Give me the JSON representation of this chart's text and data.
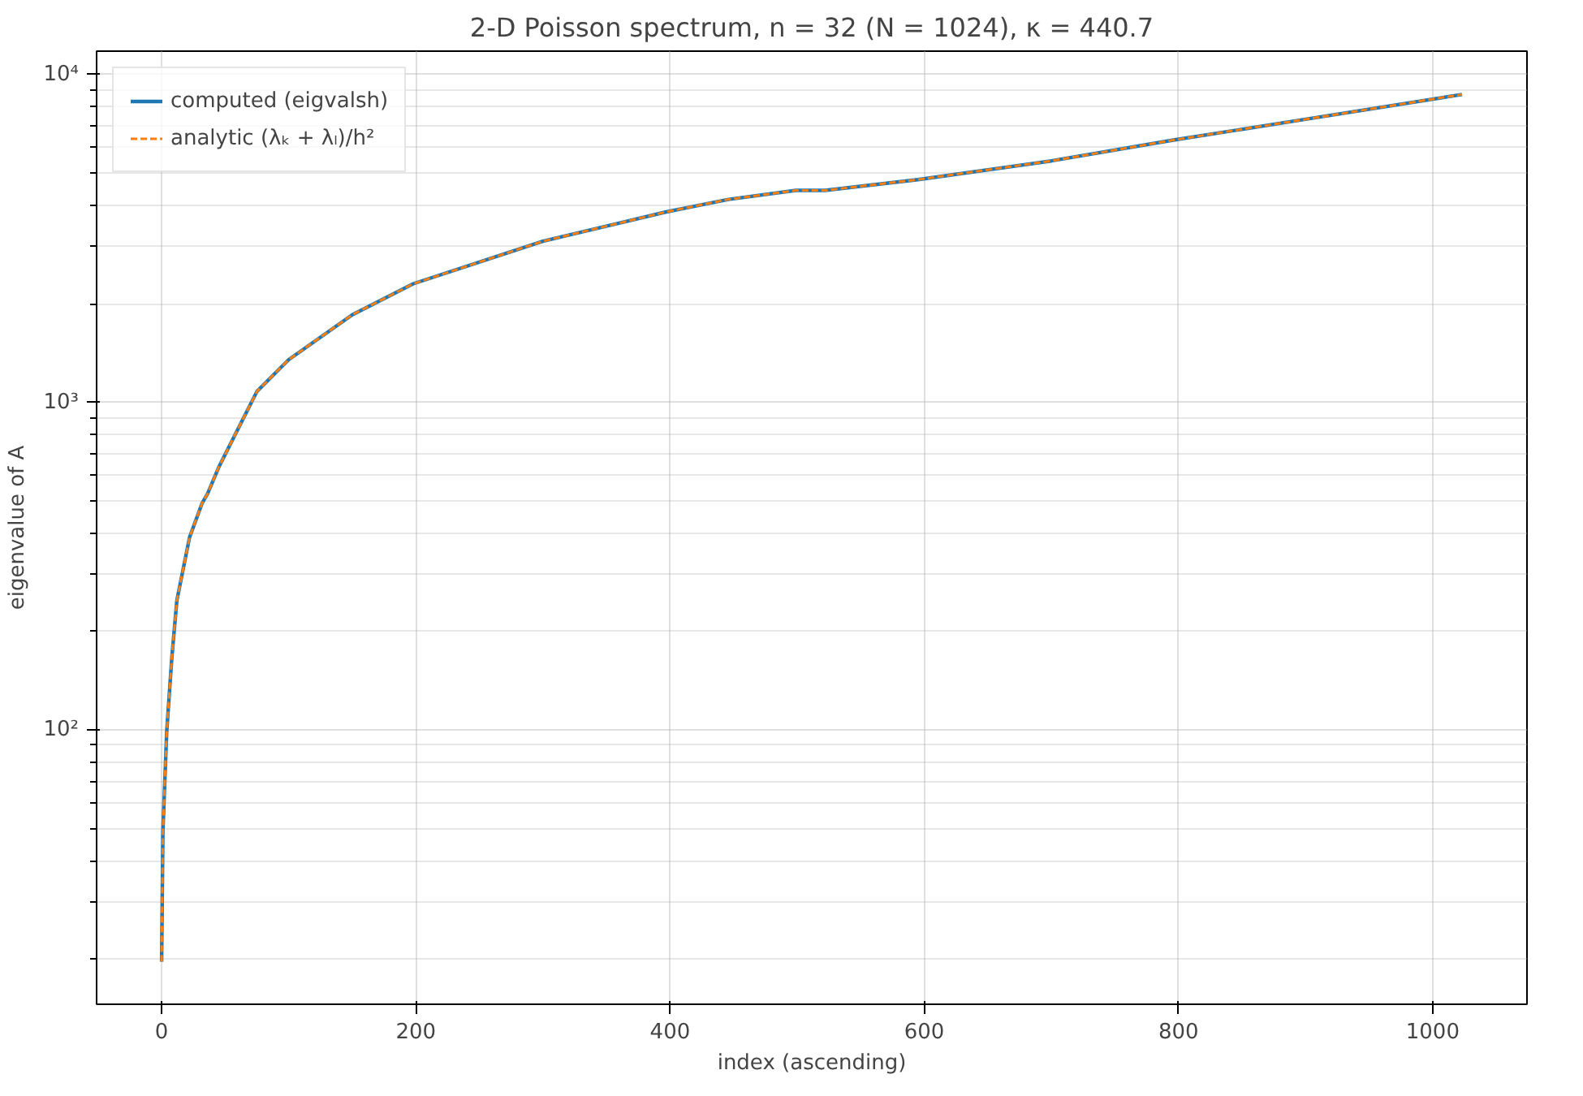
{
  "chart_data": {
    "type": "line",
    "title": "2-D Poisson spectrum, n = 32 (N = 1024), κ = 440.7",
    "xlabel": "index (ascending)",
    "ylabel": "eigenvalue of A",
    "x": [
      0,
      1,
      4,
      8,
      12,
      22,
      32,
      36,
      45,
      75,
      100,
      150,
      198,
      300,
      397,
      446,
      499,
      522,
      595,
      700,
      796,
      900,
      1023
    ],
    "series": [
      {
        "name": "computed (eigvalsh)",
        "color": "#1f77b4",
        "line_style": "solid",
        "values": [
          19.7,
          49,
          99,
          166,
          249,
          388,
          494,
          525,
          635,
          1080,
          1350,
          1850,
          2300,
          3100,
          3810,
          4160,
          4430,
          4430,
          4780,
          5450,
          6310,
          7300,
          8690
        ]
      },
      {
        "name": "analytic (λₖ + λₗ)/h²",
        "color": "#ff7f0e",
        "line_style": "dashed",
        "values": [
          19.7,
          49,
          99,
          166,
          249,
          388,
          494,
          525,
          635,
          1080,
          1350,
          1850,
          2300,
          3100,
          3810,
          4160,
          4430,
          4430,
          4780,
          5450,
          6310,
          7300,
          8690
        ]
      }
    ],
    "log": "y",
    "xlim": [
      -51.15,
      1074.15
    ],
    "ylim": [
      14.6,
      11780
    ],
    "xticks": [
      0,
      200,
      400,
      600,
      800,
      1000
    ],
    "yticks": [
      {
        "value": 100,
        "label": "10²"
      },
      {
        "value": 1000,
        "label": "10³"
      },
      {
        "value": 10000,
        "label": "10⁴"
      }
    ],
    "grid": true,
    "legend": "top left"
  }
}
